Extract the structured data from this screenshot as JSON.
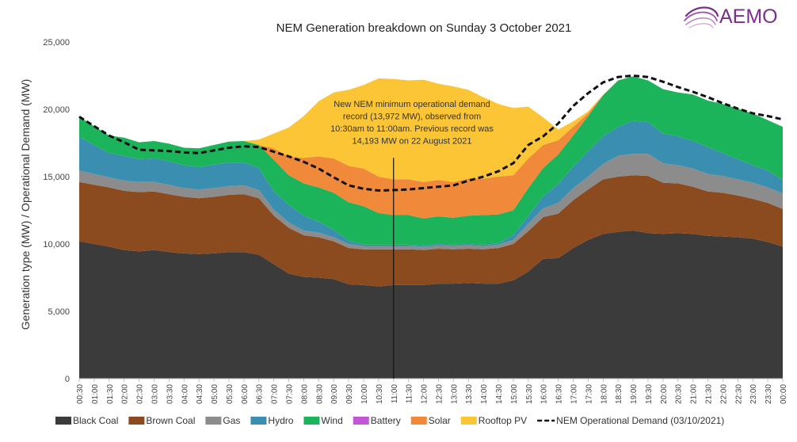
{
  "logo": {
    "text": "AEMO",
    "color": "#7a2e8e"
  },
  "chart_data": {
    "type": "area",
    "stacked": true,
    "title": "NEM Generation breakdown on Sunday 3 October 2021",
    "ylabel": "Generation type (MW) / Operational Demand (MW)",
    "xlabel": "",
    "ylim": [
      0,
      25000
    ],
    "yticks": [
      0,
      5000,
      10000,
      15000,
      20000,
      25000
    ],
    "ytick_labels": [
      "0",
      "5,000",
      "10,000",
      "15,000",
      "20,000",
      "25,000"
    ],
    "grid": false,
    "legend_position": "bottom",
    "x": [
      "00:30",
      "01:00",
      "01:30",
      "02:00",
      "02:30",
      "03:00",
      "03:30",
      "04:00",
      "04:30",
      "05:00",
      "05:30",
      "06:00",
      "06:30",
      "07:00",
      "07:30",
      "08:00",
      "08:30",
      "09:00",
      "09:30",
      "10:00",
      "10:30",
      "11:00",
      "11:30",
      "12:00",
      "12:30",
      "13:00",
      "13:30",
      "14:00",
      "14:30",
      "15:00",
      "15:30",
      "16:00",
      "16:30",
      "17:00",
      "17:30",
      "18:00",
      "18:30",
      "19:00",
      "19:30",
      "20:00",
      "20:30",
      "21:00",
      "21:30",
      "22:00",
      "22:30",
      "23:00",
      "23:30",
      "00:00"
    ],
    "series": [
      {
        "name": "Black Coal",
        "color": "#3b3b3b",
        "values": [
          10200,
          10000,
          9800,
          9550,
          9450,
          9550,
          9400,
          9300,
          9250,
          9300,
          9400,
          9400,
          9200,
          8500,
          7800,
          7550,
          7500,
          7400,
          7000,
          6950,
          6850,
          6950,
          6950,
          6950,
          7050,
          7050,
          7100,
          7050,
          7050,
          7300,
          7950,
          8900,
          8950,
          9700,
          10300,
          10750,
          10900,
          11000,
          10800,
          10750,
          10800,
          10750,
          10600,
          10550,
          10500,
          10400,
          10150,
          9800
        ]
      },
      {
        "name": "Brown Coal",
        "color": "#8b4b1f",
        "values": [
          4400,
          4400,
          4400,
          4400,
          4400,
          4350,
          4300,
          4200,
          4150,
          4200,
          4250,
          4300,
          4200,
          3600,
          3400,
          3100,
          3000,
          2800,
          2700,
          2650,
          2750,
          2650,
          2650,
          2600,
          2600,
          2550,
          2550,
          2550,
          2650,
          2700,
          3000,
          3100,
          3300,
          3550,
          3750,
          4050,
          4100,
          4100,
          4250,
          3800,
          3700,
          3500,
          3300,
          3250,
          3100,
          2950,
          2900,
          2800
        ]
      },
      {
        "name": "Gas",
        "color": "#8c8c8c",
        "values": [
          850,
          800,
          750,
          750,
          750,
          700,
          700,
          650,
          650,
          650,
          650,
          650,
          600,
          450,
          400,
          350,
          350,
          300,
          300,
          250,
          250,
          250,
          250,
          250,
          250,
          250,
          250,
          250,
          250,
          300,
          550,
          650,
          800,
          900,
          950,
          1150,
          1550,
          1600,
          1650,
          1450,
          1350,
          1350,
          1300,
          1250,
          1200,
          1200,
          1150,
          1150
        ]
      },
      {
        "name": "Hydro",
        "color": "#3a8fb0",
        "values": [
          2500,
          2150,
          1800,
          1850,
          1700,
          1750,
          1750,
          1700,
          1650,
          1750,
          1750,
          1700,
          1650,
          1350,
          1300,
          1100,
          800,
          550,
          250,
          100,
          100,
          100,
          100,
          100,
          100,
          100,
          100,
          100,
          100,
          350,
          600,
          900,
          1400,
          1600,
          1900,
          2050,
          2150,
          2450,
          2350,
          2200,
          2150,
          2050,
          2000,
          1700,
          1500,
          1300,
          1250,
          1000
        ]
      },
      {
        "name": "Wind",
        "color": "#1cb45a",
        "values": [
          1500,
          1400,
          1300,
          1350,
          1250,
          1300,
          1300,
          1300,
          1400,
          1450,
          1550,
          1600,
          1700,
          2350,
          2200,
          2400,
          2550,
          2750,
          2850,
          2850,
          2350,
          2200,
          2200,
          2000,
          2050,
          2000,
          2100,
          2200,
          2150,
          1850,
          2050,
          2100,
          2200,
          2300,
          2600,
          3050,
          3450,
          3300,
          3100,
          3300,
          3250,
          3450,
          3450,
          3650,
          3750,
          3850,
          3750,
          3950
        ]
      },
      {
        "name": "Battery",
        "color": "#c455d6",
        "values": [
          0,
          0,
          0,
          0,
          0,
          0,
          0,
          0,
          0,
          0,
          0,
          0,
          0,
          0,
          0,
          0,
          0,
          0,
          0,
          0,
          0,
          0,
          0,
          0,
          0,
          0,
          0,
          0,
          0,
          0,
          0,
          0,
          0,
          0,
          0,
          0,
          0,
          0,
          0,
          0,
          0,
          0,
          0,
          0,
          0,
          0,
          0,
          0
        ]
      },
      {
        "name": "Solar",
        "color": "#f08a3a",
        "values": [
          0,
          0,
          0,
          0,
          0,
          0,
          0,
          0,
          0,
          0,
          0,
          0,
          0,
          850,
          1400,
          1900,
          2300,
          2550,
          2700,
          2800,
          2700,
          2650,
          2650,
          2700,
          2700,
          2650,
          2750,
          2700,
          2800,
          2600,
          2200,
          1700,
          1050,
          650,
          200,
          0,
          0,
          0,
          0,
          0,
          0,
          0,
          0,
          0,
          0,
          0,
          0,
          0
        ]
      },
      {
        "name": "Rooftop PV",
        "color": "#fcc535",
        "values": [
          0,
          0,
          0,
          0,
          0,
          0,
          0,
          0,
          0,
          0,
          0,
          0,
          400,
          1100,
          2150,
          3100,
          4100,
          4900,
          5650,
          6200,
          7300,
          7450,
          7350,
          7600,
          7150,
          7100,
          6600,
          6050,
          5400,
          5000,
          3850,
          2050,
          800,
          400,
          150,
          30,
          0,
          0,
          0,
          0,
          0,
          0,
          0,
          0,
          0,
          0,
          0,
          0
        ]
      }
    ],
    "demand_line": {
      "name": "NEM Operational Demand (03/10/2021)",
      "color": "#111111",
      "values": [
        19450,
        18750,
        18050,
        17550,
        17000,
        16950,
        16900,
        16800,
        16750,
        16950,
        17150,
        17250,
        17200,
        16850,
        16500,
        16100,
        15600,
        14950,
        14350,
        14100,
        13972,
        14000,
        14050,
        14150,
        14250,
        14350,
        14700,
        15000,
        15400,
        16000,
        17350,
        18000,
        18950,
        20250,
        21200,
        22000,
        22400,
        22500,
        22400,
        22050,
        21650,
        21300,
        20900,
        20450,
        20050,
        19700,
        19500,
        19250
      ]
    },
    "annotation": {
      "text_lines": [
        "New NEM minimum operational demand",
        "record (13,972 MW), observed from",
        "10:30am to 11:00am. Previous record was",
        "14,193 MW on 22 August 2021"
      ],
      "x": "11:00",
      "y_top": 16400,
      "y_bottom": 0
    }
  }
}
